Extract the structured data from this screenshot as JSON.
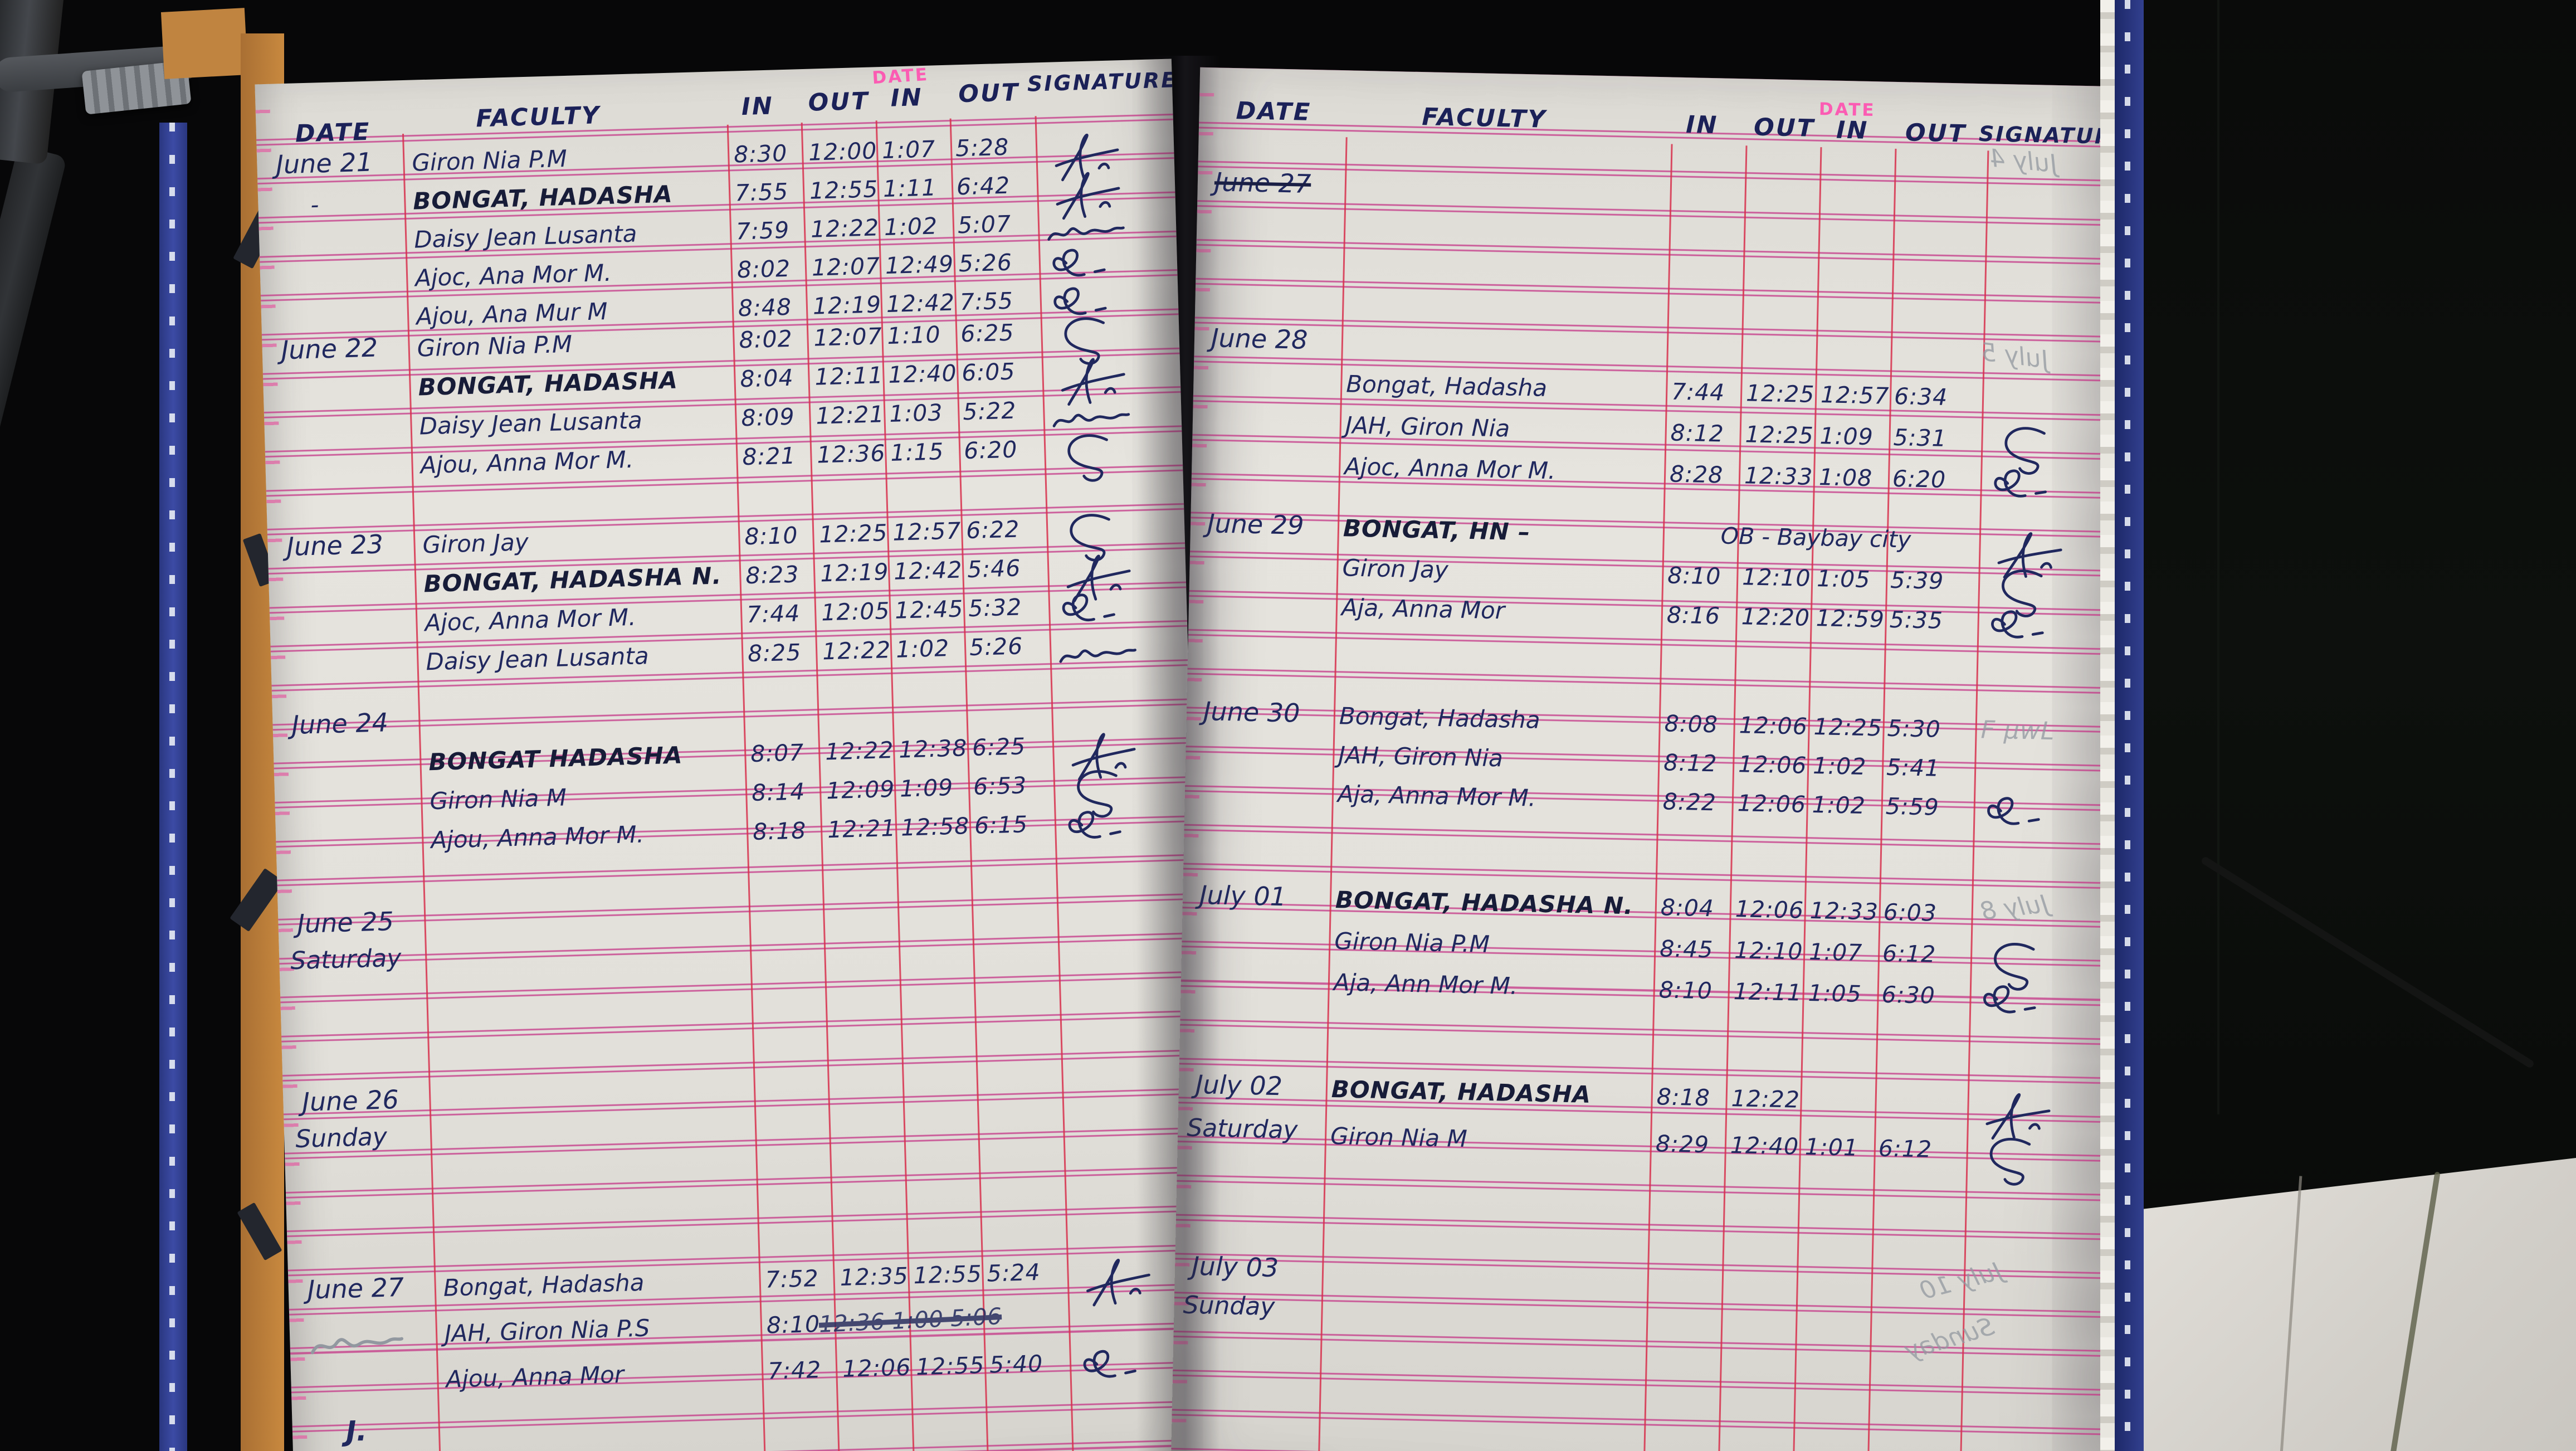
{
  "document_type": "faculty attendance logbook",
  "colors": {
    "ink_blue": "#20285e",
    "ink_dark": "#171c38",
    "pencil_ghost": "#9298a0",
    "rule_pink": "#c43486",
    "line_red": "#d7304c",
    "printed_pink": "#ff4fb0",
    "paper": "#e2e0da",
    "spine_blue": "#32408f",
    "cover_orange": "#c8893f"
  },
  "book": {
    "printed_label": "DATE",
    "pages": [
      {
        "side": "left",
        "header": {
          "date": "DATE",
          "faculty": "FACULTY",
          "in1": "IN",
          "out1": "OUT",
          "in2": "IN",
          "out2": "OUT",
          "sig": "SIGNATURE"
        },
        "footer_mark": "J.",
        "groups": [
          {
            "id": "g21",
            "date": "June 21",
            "rows": [
              {
                "faculty": "Giron Nia P.M",
                "in1": "8:30",
                "out1": "12:00",
                "in2": "1:07",
                "out2": "5:28",
                "sig": {
                  "type": "scribble",
                  "variant": "A"
                }
              },
              {
                "date_mark": "-",
                "faculty": "BONGAT, HADASHA",
                "bold": true,
                "in1": "7:55",
                "out1": "12:55",
                "in2": "1:11",
                "out2": "6:42",
                "sig": {
                  "type": "scribble",
                  "variant": "A"
                }
              },
              {
                "faculty": "Daisy Jean Lusanta",
                "in1": "7:59",
                "out1": "12:22",
                "in2": "1:02",
                "out2": "5:07",
                "sig": {
                  "type": "scribble",
                  "variant": "D"
                }
              },
              {
                "faculty": "Ajoc, Ana Mor M.",
                "in1": "8:02",
                "out1": "12:07",
                "in2": "12:49",
                "out2": "5:26",
                "sig": {
                  "type": "scribble",
                  "variant": "B"
                }
              },
              {
                "faculty": "Ajou, Ana Mur M",
                "in1": "8:48",
                "out1": "12:19",
                "in2": "12:42",
                "out2": "7:55",
                "sig": {
                  "type": "scribble",
                  "variant": "B"
                }
              }
            ]
          },
          {
            "id": "g22",
            "date": "June 22",
            "rows": [
              {
                "faculty": "Giron Nia P.M",
                "in1": "8:02",
                "out1": "12:07",
                "in2": "1:10",
                "out2": "6:25",
                "sig": {
                  "type": "scribble",
                  "variant": "C"
                }
              },
              {
                "faculty": "BONGAT, HADASHA",
                "bold": true,
                "in1": "8:04",
                "out1": "12:11",
                "in2": "12:40",
                "out2": "6:05",
                "sig": {
                  "type": "scribble",
                  "variant": "A"
                }
              },
              {
                "faculty": "Daisy Jean Lusanta",
                "in1": "8:09",
                "out1": "12:21",
                "in2": "1:03",
                "out2": "5:22",
                "sig": {
                  "type": "scribble",
                  "variant": "D"
                }
              },
              {
                "faculty": "Ajou, Anna Mor M.",
                "in1": "8:21",
                "out1": "12:36",
                "in2": "1:15",
                "out2": "6:20",
                "sig": {
                  "type": "scribble",
                  "variant": "C"
                }
              }
            ]
          },
          {
            "id": "g23",
            "date": "June 23",
            "rows": [
              {
                "faculty": "Giron Jay",
                "in1": "8:10",
                "out1": "12:25",
                "in2": "12:57",
                "out2": "6:22",
                "sig": {
                  "type": "scribble",
                  "variant": "C"
                }
              },
              {
                "faculty": "BONGAT, HADASHA N.",
                "bold": true,
                "in1": "8:23",
                "out1": "12:19",
                "in2": "12:42",
                "out2": "5:46",
                "sig": {
                  "type": "scribble",
                  "variant": "A"
                }
              },
              {
                "faculty": "Ajoc, Anna Mor M.",
                "in1": "7:44",
                "out1": "12:05",
                "in2": "12:45",
                "out2": "5:32",
                "sig": {
                  "type": "scribble",
                  "variant": "B"
                }
              },
              {
                "faculty": "Daisy Jean Lusanta",
                "in1": "8:25",
                "out1": "12:22",
                "in2": "1:02",
                "out2": "5:26",
                "sig": {
                  "type": "scribble",
                  "variant": "D"
                }
              }
            ]
          },
          {
            "id": "g24",
            "date": "June 24",
            "rows": [
              {},
              {
                "faculty": "BONGAT HADASHA",
                "bold": true,
                "in1": "8:07",
                "out1": "12:22",
                "in2": "12:38",
                "out2": "6:25",
                "sig": {
                  "type": "scribble",
                  "variant": "A"
                }
              },
              {
                "faculty": "Giron Nia M",
                "in1": "8:14",
                "out1": "12:09",
                "in2": "1:09",
                "out2": "6:53",
                "sig": {
                  "type": "scribble",
                  "variant": "C"
                }
              },
              {
                "faculty": "Ajou, Anna Mor M.",
                "in1": "8:18",
                "out1": "12:21",
                "in2": "12:58",
                "out2": "6:15",
                "sig": {
                  "type": "scribble",
                  "variant": "B"
                }
              }
            ]
          },
          {
            "id": "g25",
            "date": "June 25",
            "subdate": "Saturday",
            "rows": [
              {},
              {}
            ]
          },
          {
            "id": "g26",
            "date": "June 26",
            "subdate": "Sunday",
            "rows": [
              {},
              {}
            ]
          },
          {
            "id": "g27",
            "date": "June 27",
            "scribble_under": true,
            "rows": [
              {
                "faculty": "Bongat, Hadasha",
                "in1": "7:52",
                "out1": "12:35",
                "in2": "12:55",
                "out2": "5:24",
                "sig": {
                  "type": "scribble",
                  "variant": "A"
                }
              },
              {
                "faculty": "JAH, Giron Nia  P.S",
                "in1": "8:10",
                "note": "12:36  1:00  5:06",
                "note_struck": true
              },
              {
                "faculty": "Ajou, Anna Mor",
                "in1": "7:42",
                "out1": "12:06",
                "in2": "12:55",
                "out2": "5:40",
                "sig": {
                  "type": "scribble",
                  "variant": "B"
                }
              }
            ]
          },
          {
            "id": "gend",
            "rows": []
          }
        ],
        "ghosts": []
      },
      {
        "side": "right",
        "header": {
          "date": "DATE",
          "faculty": "FACULTY",
          "in1": "IN",
          "out1": "OUT",
          "in2": "IN",
          "out2": "OUT",
          "sig": "SIGNATURE"
        },
        "groups": [
          {
            "id": "gx",
            "date": "June 27",
            "date_struck": true,
            "rows": [
              {}
            ]
          },
          {
            "id": "g28",
            "date": "June 28",
            "rows": [
              {},
              {
                "faculty": "Bongat, Hadasha",
                "in1": "7:44",
                "out1": "12:25",
                "in2": "12:57",
                "out2": "6:34"
              },
              {
                "faculty": "JAH, Giron Nia",
                "in1": "8:12",
                "out1": "12:25",
                "in2": "1:09",
                "out2": "5:31",
                "sig": {
                  "type": "scribble",
                  "variant": "C"
                }
              },
              {
                "faculty": "Ajoc, Anna Mor M.",
                "in1": "8:28",
                "out1": "12:33",
                "in2": "1:08",
                "out2": "6:20",
                "sig": {
                  "type": "scribble",
                  "variant": "B"
                }
              }
            ]
          },
          {
            "id": "g29",
            "date": "June 29",
            "rows": [
              {
                "faculty": "BONGAT, HN  –",
                "bold": true,
                "note": "OB - Baybay city",
                "sig": {
                  "type": "scribble",
                  "variant": "A"
                }
              },
              {
                "faculty": "Giron Jay",
                "in1": "8:10",
                "out1": "12:10",
                "in2": "1:05",
                "out2": "5:39",
                "sig": {
                  "type": "scribble",
                  "variant": "C"
                }
              },
              {
                "faculty": "Aja, Anna Mor",
                "in1": "8:16",
                "out1": "12:20",
                "in2": "12:59",
                "out2": "5:35",
                "sig": {
                  "type": "scribble",
                  "variant": "B"
                }
              }
            ]
          },
          {
            "id": "g30",
            "date": "June 30",
            "rows": [
              {
                "faculty": "Bongat, Hadasha",
                "in1": "8:08",
                "out1": "12:06",
                "in2": "12:25",
                "out2": "5:30",
                "sig": {
                  "type": "text",
                  "value": "F μwL",
                  "ghost": true
                }
              },
              {
                "faculty": "JAH, Giron Nia",
                "in1": "8:12",
                "out1": "12:06",
                "in2": "1:02",
                "out2": "5:41"
              },
              {
                "faculty": "Aja, Anna Mor M.",
                "in1": "8:22",
                "out1": "12:06",
                "in2": "1:02",
                "out2": "5:59",
                "sig": {
                  "type": "scribble",
                  "variant": "B"
                }
              }
            ]
          },
          {
            "id": "g01",
            "date": "July 01",
            "rows": [
              {
                "faculty": "BONGAT, HADASHA  N.",
                "bold": true,
                "in1": "8:04",
                "out1": "12:06",
                "in2": "12:33",
                "out2": "6:03"
              },
              {
                "faculty": "Giron Nia P.M",
                "in1": "8:45",
                "out1": "12:10",
                "in2": "1:07",
                "out2": "6:12",
                "sig": {
                  "type": "scribble",
                  "variant": "C"
                }
              },
              {
                "faculty": "Aja, Ann Mor  M.",
                "in1": "8:10",
                "out1": "12:11",
                "in2": "1:05",
                "out2": "6:30",
                "sig": {
                  "type": "scribble",
                  "variant": "B"
                }
              }
            ]
          },
          {
            "id": "g02",
            "date": "July 02",
            "subdate": "Saturday",
            "rows": [
              {
                "faculty": "BONGAT, HADASHA",
                "bold": true,
                "in1": "8:18",
                "out1": "12:22",
                "sig": {
                  "type": "scribble",
                  "variant": "A"
                }
              },
              {
                "faculty": "Giron Nia M",
                "in1": "8:29",
                "out1": "12:40",
                "in2": "1:01",
                "out2": "6:12",
                "sig": {
                  "type": "scribble",
                  "variant": "C"
                }
              }
            ]
          },
          {
            "id": "g03",
            "date": "July 03",
            "subdate": "Sunday",
            "rows": [
              {},
              {}
            ]
          }
        ],
        "ghosts": [
          {
            "text": "July 4",
            "mirror": true
          },
          {
            "text": "July 5",
            "mirror": true
          },
          {
            "text": "July 8",
            "mirror": true
          },
          {
            "text": "July 10",
            "mirror": true
          },
          {
            "text": "Sunday",
            "mirror": true
          }
        ]
      }
    ]
  }
}
